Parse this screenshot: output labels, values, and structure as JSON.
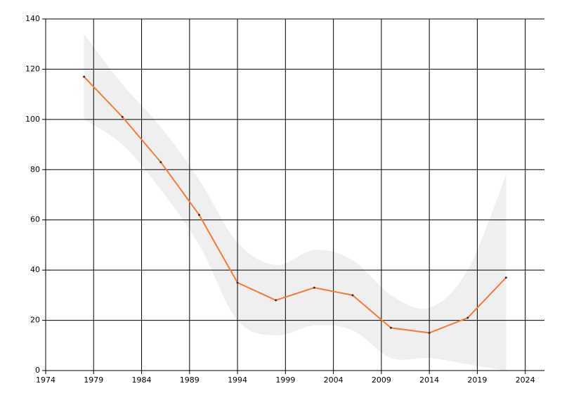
{
  "chart_data": {
    "type": "line",
    "x": [
      1978,
      1982,
      1986,
      1990,
      1994,
      1998,
      2002,
      2006,
      2010,
      2014,
      2018,
      2022
    ],
    "values": [
      117,
      101,
      83,
      62,
      35,
      28,
      33,
      30,
      17,
      15,
      21,
      37
    ],
    "color": "#f47b3c",
    "band_upper": [
      134,
      114,
      97,
      76,
      51,
      42,
      48,
      44,
      30,
      25,
      40,
      78
    ],
    "band_lower": [
      100,
      90,
      72,
      50,
      20,
      14,
      18,
      16,
      5,
      5,
      2.5,
      0
    ],
    "band_color": "#efefef",
    "xlim": [
      1974,
      2026
    ],
    "xticks": [
      1974,
      1979,
      1984,
      1989,
      1994,
      1999,
      2004,
      2009,
      2014,
      2019,
      2024
    ],
    "ylim": [
      0,
      140
    ],
    "yticks": [
      0,
      20,
      40,
      60,
      80,
      100,
      120,
      140
    ],
    "grid": true
  }
}
